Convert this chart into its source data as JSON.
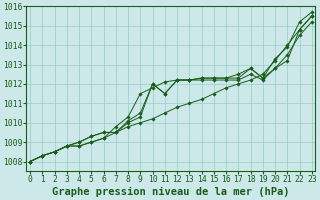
{
  "title": "Graphe pression niveau de la mer (hPa)",
  "xlabel_hours": [
    0,
    1,
    2,
    3,
    4,
    5,
    6,
    7,
    8,
    9,
    10,
    11,
    12,
    13,
    14,
    15,
    16,
    17,
    18,
    19,
    20,
    21,
    22,
    23
  ],
  "series": [
    [
      1008.0,
      1008.3,
      1008.5,
      1008.8,
      1008.8,
      1009.0,
      1009.2,
      1009.5,
      1009.8,
      1010.0,
      1010.2,
      1010.5,
      1010.8,
      1011.0,
      1011.2,
      1011.5,
      1011.8,
      1012.0,
      1012.2,
      1012.5,
      1013.2,
      1014.0,
      1014.8,
      1015.5
    ],
    [
      1008.0,
      1008.3,
      1008.5,
      1008.8,
      1009.0,
      1009.3,
      1009.5,
      1009.5,
      1010.1,
      1010.5,
      1012.0,
      1011.5,
      1012.2,
      1012.2,
      1012.3,
      1012.3,
      1012.3,
      1012.3,
      1012.8,
      1012.3,
      1013.3,
      1013.9,
      1015.2,
      1015.7
    ],
    [
      1008.0,
      1008.3,
      1008.5,
      1008.8,
      1009.0,
      1009.3,
      1009.5,
      1009.5,
      1010.0,
      1010.3,
      1012.0,
      1011.5,
      1012.2,
      1012.2,
      1012.3,
      1012.3,
      1012.3,
      1012.5,
      1012.8,
      1012.3,
      1012.8,
      1013.5,
      1014.5,
      1015.2
    ],
    [
      1008.0,
      1008.3,
      1008.5,
      1008.8,
      1008.8,
      1009.0,
      1009.2,
      1009.8,
      1010.3,
      1011.5,
      1011.8,
      1012.1,
      1012.2,
      1012.2,
      1012.2,
      1012.2,
      1012.2,
      1012.2,
      1012.5,
      1012.2,
      1012.8,
      1013.2,
      1014.8,
      1015.5
    ]
  ],
  "line_color": "#1a5c1a",
  "marker_color": "#1a5c1a",
  "bg_color": "#cce8e8",
  "grid_color": "#99cccc",
  "axis_label_color": "#1a5c1a",
  "tick_label_color": "#1a5c1a",
  "ylim": [
    1007.5,
    1016.0
  ],
  "yticks": [
    1008,
    1009,
    1010,
    1011,
    1012,
    1013,
    1014,
    1015,
    1016
  ],
  "xlim": [
    -0.3,
    23.3
  ],
  "title_fontsize": 7.5,
  "tick_fontsize": 5.8
}
